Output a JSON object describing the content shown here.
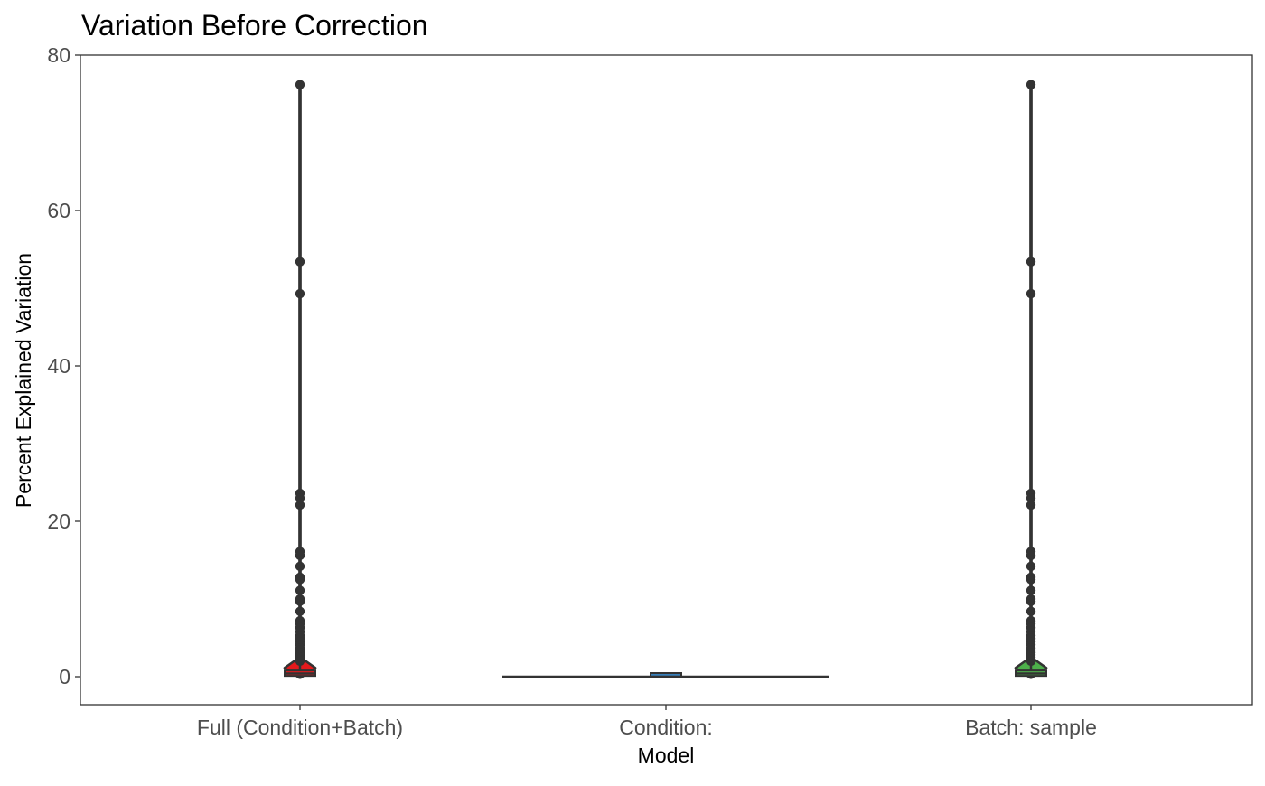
{
  "chart_data": {
    "type": "violin",
    "title": "Variation Before Correction",
    "xlabel": "Model",
    "ylabel": "Percent Explained Variation",
    "ylim": [
      -3.8,
      80
    ],
    "yticks": [
      0,
      20,
      40,
      60,
      80
    ],
    "grid": false,
    "legend": "none",
    "categories": [
      "Full (Condition+Batch)",
      "Condition:",
      "Batch: sample"
    ],
    "series": [
      {
        "category": "Full (Condition+Batch)",
        "fill": "#e41a1c",
        "median": 0.4,
        "q1": 0.1,
        "q3": 0.8,
        "whisker_low": 0,
        "whisker_high": 1.8,
        "outliers": [
          76.2,
          53.4,
          49.3,
          23.6,
          23.0,
          22.1,
          16.1,
          15.6,
          14.2,
          12.8,
          12.5,
          11.1,
          10.0,
          9.7,
          8.4,
          7.2,
          6.8,
          6.3,
          5.8,
          5.3,
          4.9,
          4.5,
          4.1,
          3.7,
          3.4,
          3.1,
          2.8,
          2.5,
          2.2,
          2.0
        ],
        "violin_max_width": 0.03
      },
      {
        "category": "Condition:",
        "fill": "#377eb8",
        "median": 0,
        "q1": 0,
        "q3": 0,
        "whisker_low": 0,
        "whisker_high": 0,
        "outliers": [],
        "violin_max_width": 0.01
      },
      {
        "category": "Batch: sample",
        "fill": "#4daf4a",
        "median": 0.4,
        "q1": 0.1,
        "q3": 0.8,
        "whisker_low": 0,
        "whisker_high": 1.8,
        "outliers": [
          76.2,
          53.4,
          49.3,
          23.6,
          23.0,
          22.1,
          16.1,
          15.6,
          14.2,
          12.8,
          12.5,
          11.1,
          10.0,
          9.7,
          8.4,
          7.2,
          6.8,
          6.3,
          5.8,
          5.3,
          4.9,
          4.5,
          4.1,
          3.7,
          3.4,
          3.1,
          2.8,
          2.5,
          2.2,
          2.0
        ],
        "violin_max_width": 0.03
      }
    ]
  }
}
